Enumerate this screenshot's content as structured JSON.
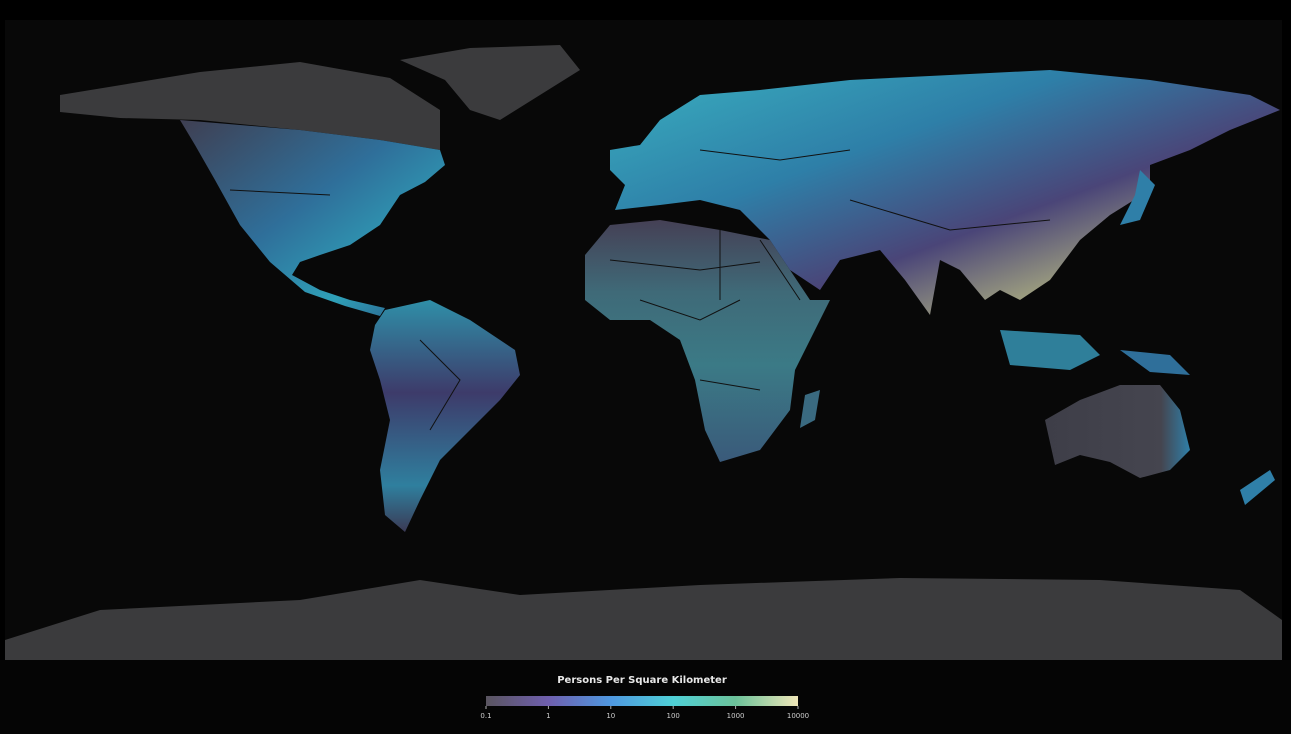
{
  "map": {
    "legend": {
      "title": "Persons Per Square Kilometer",
      "lim": [
        0.1,
        10000
      ],
      "ticks": [
        0.1,
        1,
        10,
        100,
        1000,
        10000
      ],
      "log": true,
      "colors": [
        "#5a5560",
        "#6f5fae",
        "#4f98e0",
        "#4fd0d6",
        "#6cc29a",
        "#efe6b8"
      ]
    }
  }
}
